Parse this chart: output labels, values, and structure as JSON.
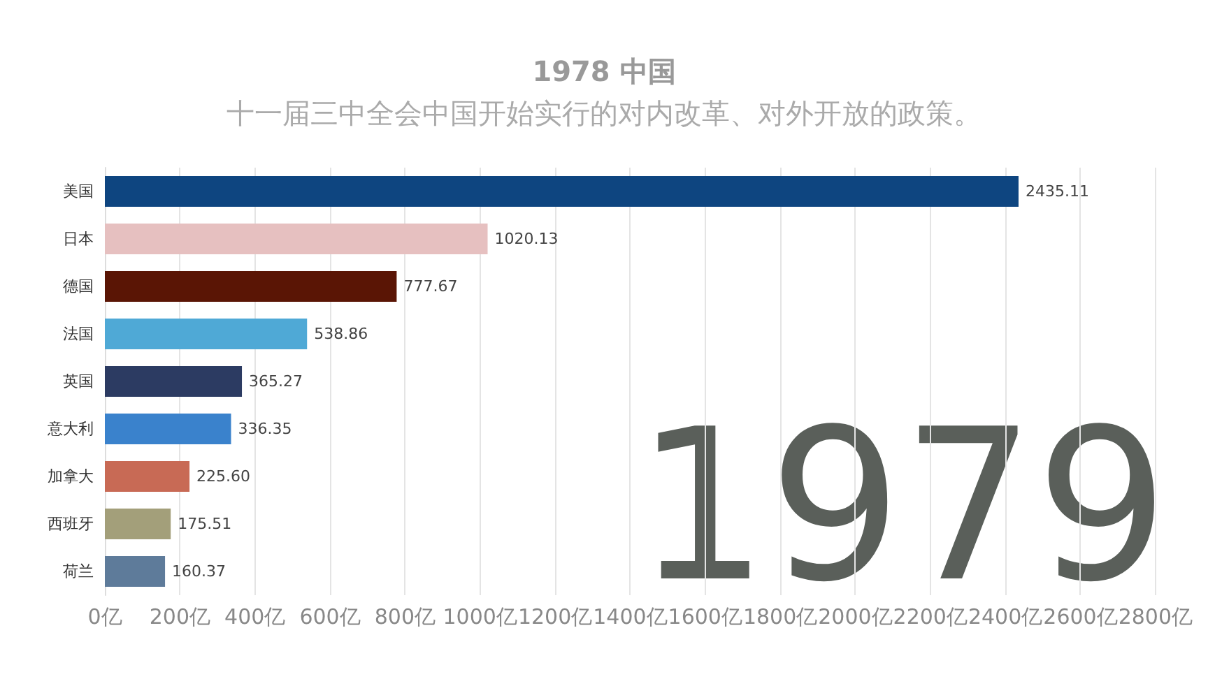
{
  "chart_data": {
    "type": "bar",
    "orientation": "horizontal",
    "title": "1978 中国",
    "subtitle": "十一届三中全会中国开始实行的对内改革、对外开放的政策。",
    "categories": [
      "美国",
      "日本",
      "德国",
      "法国",
      "英国",
      "意大利",
      "加拿大",
      "西班牙",
      "荷兰"
    ],
    "values": [
      2435.11,
      1020.13,
      777.67,
      538.86,
      365.27,
      336.35,
      225.6,
      175.51,
      160.37
    ],
    "value_labels": [
      "2435.11",
      "1020.13",
      "777.67",
      "538.86",
      "365.27",
      "336.35",
      "225.60",
      "175.51",
      "160.37"
    ],
    "colors": [
      "#0e4580",
      "#e6c0c0",
      "#5a1505",
      "#4fa9d6",
      "#2c3b62",
      "#3a82cc",
      "#c86a55",
      "#a39f7a",
      "#5e7b9a"
    ],
    "xlim": [
      0,
      2800
    ],
    "xticks": [
      {
        "value": 0,
        "label": "0亿"
      },
      {
        "value": 200,
        "label": "200亿"
      },
      {
        "value": 400,
        "label": "400亿"
      },
      {
        "value": 600,
        "label": "600亿"
      },
      {
        "value": 800,
        "label": "800亿"
      },
      {
        "value": 1000,
        "label": "1000亿"
      },
      {
        "value": 1200,
        "label": "1200亿"
      },
      {
        "value": 1400,
        "label": "1400亿"
      },
      {
        "value": 1600,
        "label": "1600亿"
      },
      {
        "value": 1800,
        "label": "1800亿"
      },
      {
        "value": 2000,
        "label": "2000亿"
      },
      {
        "value": 2200,
        "label": "2200亿"
      },
      {
        "value": 2400,
        "label": "2400亿"
      },
      {
        "value": 2600,
        "label": "2600亿"
      },
      {
        "value": 2800,
        "label": "2800亿"
      }
    ],
    "grid": "x",
    "annotations": [
      "1979"
    ]
  }
}
